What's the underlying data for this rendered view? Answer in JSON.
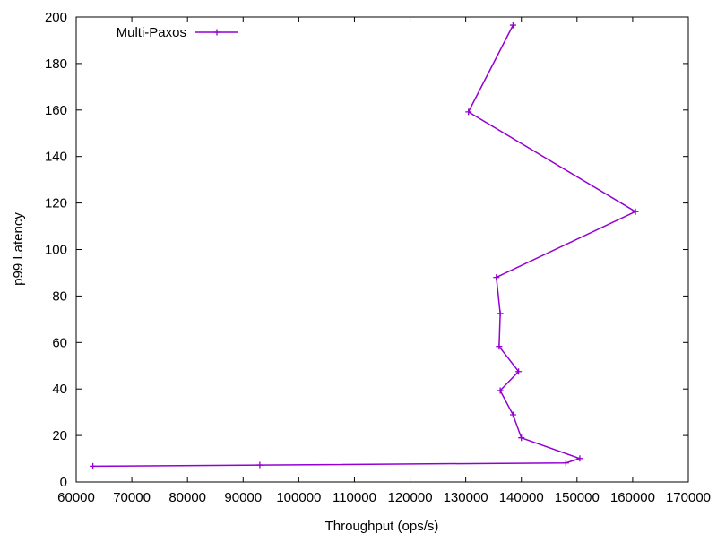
{
  "chart_data": {
    "type": "line",
    "title": "",
    "xlabel": "Throughput (ops/s)",
    "ylabel": "p99 Latency",
    "xlim": [
      60000,
      170000
    ],
    "ylim": [
      0,
      200
    ],
    "x_ticks": [
      60000,
      70000,
      80000,
      90000,
      100000,
      110000,
      120000,
      130000,
      140000,
      150000,
      160000,
      170000
    ],
    "y_ticks": [
      0,
      20,
      40,
      60,
      80,
      100,
      120,
      140,
      160,
      180,
      200
    ],
    "grid": false,
    "legend_position": "top-left",
    "series": [
      {
        "name": "Multi-Paxos",
        "color": "#9400D3",
        "marker": "plus",
        "points": [
          {
            "x": 63000,
            "y": 6.8
          },
          {
            "x": 93000,
            "y": 7.3
          },
          {
            "x": 148000,
            "y": 8.2
          },
          {
            "x": 150500,
            "y": 10.1
          },
          {
            "x": 140000,
            "y": 19.0
          },
          {
            "x": 138500,
            "y": 28.9
          },
          {
            "x": 136200,
            "y": 39.3
          },
          {
            "x": 139500,
            "y": 47.5
          },
          {
            "x": 136000,
            "y": 58.3
          },
          {
            "x": 136200,
            "y": 72.5
          },
          {
            "x": 135500,
            "y": 88.0
          },
          {
            "x": 160500,
            "y": 116.3
          },
          {
            "x": 130500,
            "y": 159.2
          },
          {
            "x": 138500,
            "y": 196.5
          }
        ]
      }
    ]
  }
}
